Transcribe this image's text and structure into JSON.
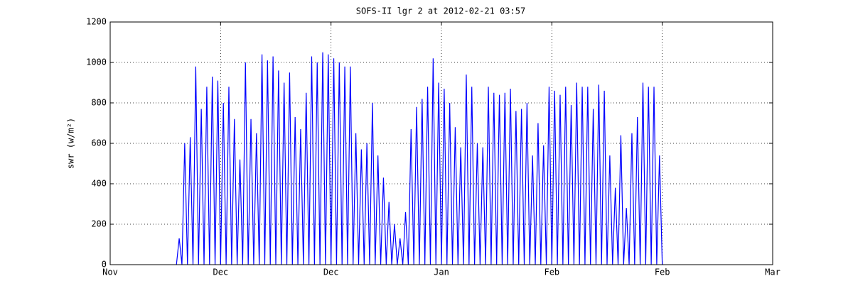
{
  "chart_data": {
    "type": "line",
    "title": "SOFS-II lgr 2 at 2012-02-21 03:57",
    "ylabel": "swr (w/m²)",
    "xlim": [
      0,
      120
    ],
    "xticks": [
      {
        "value": 0,
        "label": "Nov"
      },
      {
        "value": 20,
        "label": "Dec"
      },
      {
        "value": 40,
        "label": "Dec"
      },
      {
        "value": 60,
        "label": "Jan"
      },
      {
        "value": 80,
        "label": "Feb"
      },
      {
        "value": 100,
        "label": "Feb"
      },
      {
        "value": 120,
        "label": "Mar"
      }
    ],
    "ylim": [
      0,
      1200
    ],
    "yticks": [
      0,
      200,
      400,
      600,
      800,
      1000,
      1200
    ],
    "grid": true,
    "x": [
      12,
      12.5,
      13,
      13.5,
      14,
      14.5,
      15,
      15.5,
      16,
      16.5,
      17,
      17.5,
      18,
      18.5,
      19,
      19.5,
      20,
      20.5,
      21,
      21.5,
      22,
      22.5,
      23,
      23.5,
      24,
      24.5,
      25,
      25.5,
      26,
      26.5,
      27,
      27.5,
      28,
      28.5,
      29,
      29.5,
      30,
      30.5,
      31,
      31.5,
      32,
      32.5,
      33,
      33.5,
      34,
      34.5,
      35,
      35.5,
      36,
      36.5,
      37,
      37.5,
      38,
      38.5,
      39,
      39.5,
      40,
      40.5,
      41,
      41.5,
      42,
      42.5,
      43,
      43.5,
      44,
      44.5,
      45,
      45.5,
      46,
      46.5,
      47,
      47.5,
      48,
      48.5,
      49,
      49.5,
      50,
      50.5,
      51,
      51.5,
      52,
      52.5,
      53,
      53.5,
      54,
      54.5,
      55,
      55.5,
      56,
      56.5,
      57,
      57.5,
      58,
      58.5,
      59,
      59.5,
      60,
      60.5,
      61,
      61.5,
      62,
      62.5,
      63,
      63.5,
      64,
      64.5,
      65,
      65.5,
      66,
      66.5,
      67,
      67.5,
      68,
      68.5,
      69,
      69.5,
      70,
      70.5,
      71,
      71.5,
      72,
      72.5,
      73,
      73.5,
      74,
      74.5,
      75,
      75.5,
      76,
      76.5,
      77,
      77.5,
      78,
      78.5,
      79,
      79.5,
      80,
      80.5,
      81,
      81.5,
      82,
      82.5,
      83,
      83.5,
      84,
      84.5,
      85,
      85.5,
      86,
      86.5,
      87,
      87.5,
      88,
      88.5,
      89,
      89.5,
      90,
      90.5,
      91,
      91.5,
      92,
      92.5,
      93,
      93.5,
      94,
      94.5,
      95,
      95.5,
      96,
      96.5,
      97,
      97.5,
      98,
      98.5,
      99,
      99.5,
      100
    ],
    "series": [
      {
        "color": "#0000ff",
        "values": [
          0,
          130,
          0,
          600,
          0,
          630,
          0,
          980,
          0,
          770,
          0,
          880,
          0,
          930,
          0,
          910,
          0,
          800,
          0,
          880,
          0,
          720,
          0,
          520,
          0,
          1000,
          0,
          720,
          0,
          650,
          0,
          1040,
          0,
          1010,
          0,
          1030,
          0,
          960,
          0,
          900,
          0,
          950,
          0,
          730,
          0,
          670,
          0,
          850,
          0,
          1030,
          0,
          1000,
          0,
          1050,
          0,
          1040,
          0,
          1020,
          0,
          1000,
          0,
          980,
          0,
          980,
          0,
          650,
          0,
          570,
          0,
          600,
          0,
          800,
          0,
          540,
          0,
          430,
          0,
          310,
          0,
          200,
          0,
          130,
          0,
          260,
          0,
          670,
          0,
          780,
          0,
          820,
          0,
          880,
          0,
          1020,
          0,
          900,
          0,
          870,
          0,
          800,
          0,
          680,
          0,
          580,
          0,
          940,
          0,
          880,
          0,
          600,
          0,
          580,
          0,
          880,
          0,
          850,
          0,
          840,
          0,
          850,
          0,
          870,
          0,
          760,
          0,
          770,
          0,
          800,
          0,
          540,
          0,
          700,
          0,
          590,
          0,
          880,
          0,
          860,
          0,
          840,
          0,
          880,
          0,
          790,
          0,
          900,
          0,
          880,
          0,
          880,
          0,
          770,
          0,
          890,
          0,
          860,
          0,
          540,
          0,
          380,
          0,
          640,
          0,
          280,
          0,
          650,
          0,
          730,
          0,
          900,
          0,
          880,
          0,
          880,
          0,
          540,
          0
        ]
      }
    ]
  }
}
